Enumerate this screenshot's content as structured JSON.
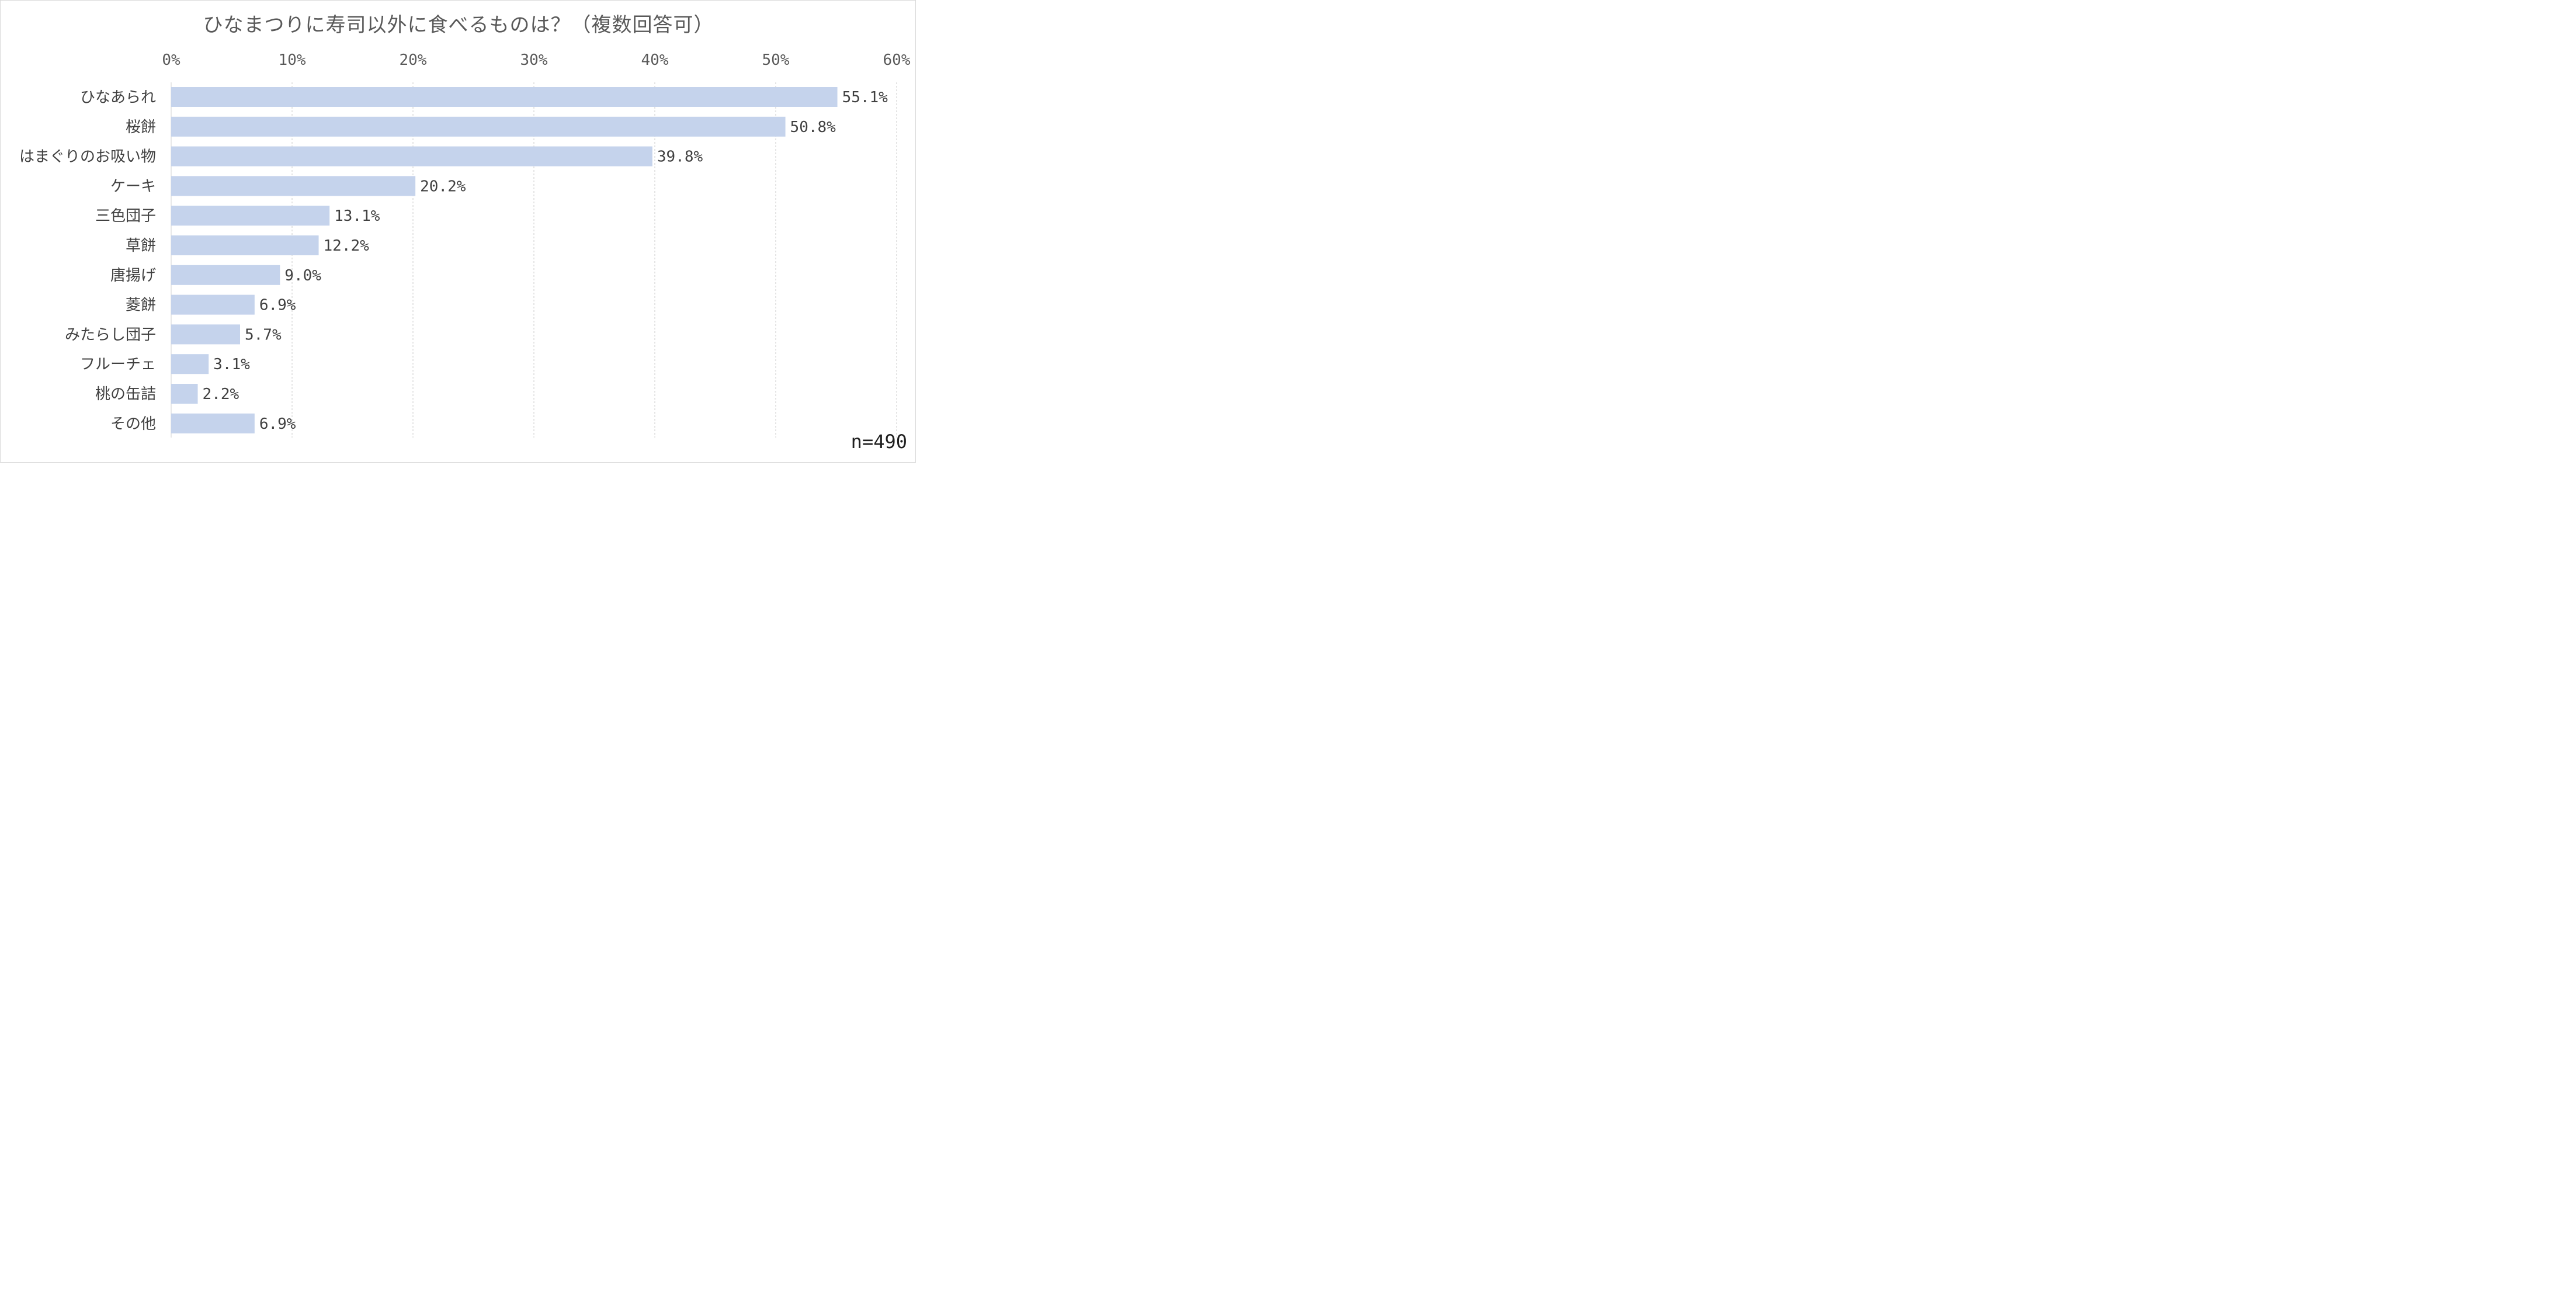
{
  "chart_data": {
    "type": "bar",
    "orientation": "horizontal",
    "title": "ひなまつりに寿司以外に食べるものは？（複数回答可）",
    "categories": [
      "ひなあられ",
      "桜餅",
      "はまぐりのお吸い物",
      "ケーキ",
      "三色団子",
      "草餅",
      "唐揚げ",
      "菱餅",
      "みたらし団子",
      "フルーチェ",
      "桃の缶詰",
      "その他"
    ],
    "values": [
      55.1,
      50.8,
      39.8,
      20.2,
      13.1,
      12.2,
      9.0,
      6.9,
      5.7,
      3.1,
      2.2,
      6.9
    ],
    "data_labels": [
      "55.1%",
      "50.8%",
      "39.8%",
      "20.2%",
      "13.1%",
      "12.2%",
      "9.0%",
      "6.9%",
      "5.7%",
      "3.1%",
      "2.2%",
      "6.9%"
    ],
    "xlim": [
      0,
      60
    ],
    "x_ticks": [
      "0%",
      "10%",
      "20%",
      "30%",
      "40%",
      "50%",
      "60%"
    ],
    "x_axis_position": "top",
    "grid": true,
    "bar_color": "#c5d3ec",
    "note": "n=490"
  }
}
